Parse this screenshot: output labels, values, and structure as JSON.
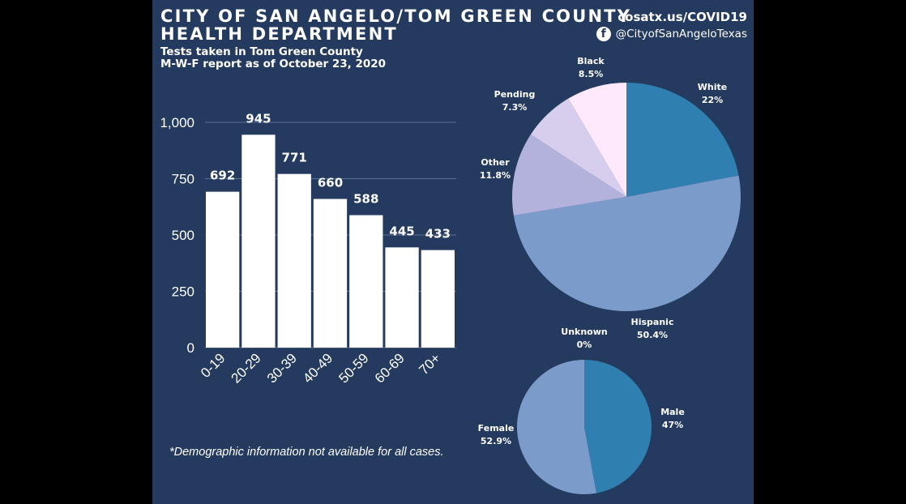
{
  "header": {
    "title_line1": "CITY OF SAN ANGELO/TOM GREEN COUNTY",
    "title_line2": "HEALTH DEPARTMENT",
    "subtitle_line1": "Tests taken in Tom Green County",
    "subtitle_line2": "M-W-F report as of October 23, 2020",
    "url": "cosatx.us/COVID19",
    "facebook_handle": "@CityofSanAngeloTexas",
    "facebook_icon": "facebook-icon"
  },
  "footnote": "*Demographic information not available for all cases.",
  "colors": {
    "background": "#243a5f",
    "bar": "#ffffff",
    "white_slice": "#2f7fb0",
    "hispanic_slice": "#7b9cca",
    "other_slice": "#b2b2dd",
    "pending_slice": "#d7cdec",
    "black_slice": "#fde9fb",
    "male_slice": "#2f7fb0",
    "female_slice": "#7b9cca"
  },
  "chart_data": [
    {
      "type": "bar",
      "title": "",
      "xlabel": "",
      "ylabel": "",
      "categories": [
        "0-19",
        "20-29",
        "30-39",
        "40-49",
        "50-59",
        "60-69",
        "70+"
      ],
      "values": [
        692,
        945,
        771,
        660,
        588,
        445,
        433
      ],
      "value_labels": [
        "692",
        "945",
        "771",
        "660",
        "588",
        "445",
        "433"
      ],
      "ylim": [
        0,
        1000
      ],
      "yticks": [
        0,
        250,
        500,
        750,
        1000
      ],
      "ytick_labels": [
        "0",
        "250",
        "500",
        "750",
        "1,000"
      ],
      "grid": true
    },
    {
      "type": "pie",
      "title": "",
      "slices": [
        {
          "label": "White",
          "pct_label": "22%",
          "value": 22.0
        },
        {
          "label": "Hispanic",
          "pct_label": "50.4%",
          "value": 50.4
        },
        {
          "label": "Other",
          "pct_label": "11.8%",
          "value": 11.8
        },
        {
          "label": "Pending",
          "pct_label": "7.3%",
          "value": 7.3
        },
        {
          "label": "Black",
          "pct_label": "8.5%",
          "value": 8.5
        }
      ]
    },
    {
      "type": "pie",
      "title": "",
      "slices": [
        {
          "label": "Male",
          "pct_label": "47%",
          "value": 47.1
        },
        {
          "label": "Female",
          "pct_label": "52.9%",
          "value": 52.9
        },
        {
          "label": "Unknown",
          "pct_label": "0%",
          "value": 0
        }
      ]
    }
  ]
}
